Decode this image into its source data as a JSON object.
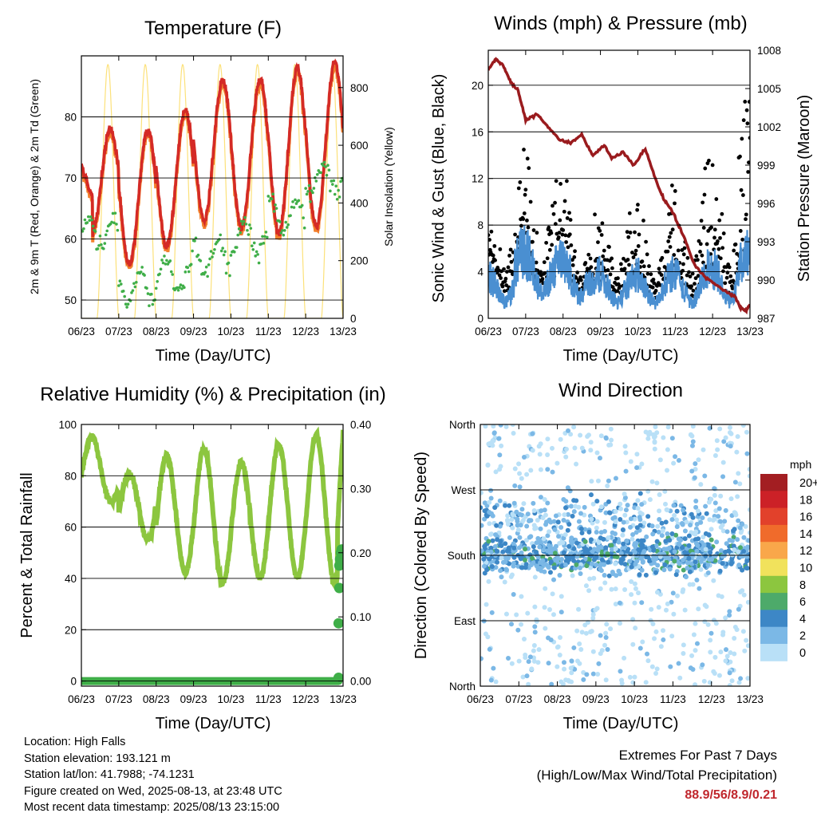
{
  "panels": {
    "temperature": {
      "title": "Temperature (F)",
      "xlabel": "Time (Day/UTC)",
      "ylabel_left": "2m & 9m T (Red, Orange) & 2m Td (Green)",
      "ylabel_right": "Solar Insolation (Yellow)"
    },
    "winds": {
      "title": "Winds (mph) & Pressure (mb)",
      "xlabel": "Time (Day/UTC)",
      "ylabel_left": "Sonic Wind & Gust (Blue, Black)",
      "ylabel_right": "Station Pressure (Maroon)"
    },
    "humidity": {
      "title": "Relative Humidity (%) & Precipitation (in)",
      "xlabel": "Time (Day/UTC)",
      "ylabel_left": "Percent & Total Rainfall"
    },
    "wind_direction": {
      "title": "Wind Direction",
      "xlabel": "Time (Day/UTC)",
      "ylabel_left": "Direction (Colored By Speed)"
    }
  },
  "colors": {
    "temp2m": "#d42a26",
    "temp9m": "#f27f2c",
    "dewpoint": "#3fae48",
    "solar": "#fce17a",
    "wind": "#4a8fd1",
    "gust": "#000000",
    "pressure": "#9a1b1e",
    "rh": "#8cc63f",
    "precip": "#3fae48",
    "extremes": "#c0272d"
  },
  "station": {
    "location": "Location: High Falls",
    "elevation": "Station elevation: 193.121 m",
    "latlon": "Station lat/lon: 41.7988; -74.1231",
    "created": "Figure created on Wed, 2025-08-13, at 23:48 UTC",
    "latest": "Most recent data timestamp: 2025/08/13 23:15:00"
  },
  "extremes": {
    "line1": "Extremes For Past 7 Days",
    "line2": "(High/Low/Max Wind/Total Precipitation)",
    "values": "88.9/56/8.9/0.21"
  },
  "chart_data": [
    {
      "id": "temperature",
      "type": "line",
      "title": "Temperature (F)",
      "xlabel": "Time (Day/UTC)",
      "ylabel": "2m & 9m T (Red, Orange) & 2m Td (Green)",
      "y2label": "Solar Insolation (Yellow)",
      "x_ticks": [
        "06/23",
        "07/23",
        "08/23",
        "09/23",
        "10/23",
        "11/23",
        "12/23",
        "13/23"
      ],
      "xlim": [
        0,
        7
      ],
      "ylim": [
        47,
        90
      ],
      "y_ticks": [
        50,
        60,
        70,
        80
      ],
      "y2lim": [
        0,
        910
      ],
      "y2_ticks": [
        0,
        200,
        400,
        600,
        800
      ],
      "grid": "horizontal",
      "daily_2m_temp": {
        "max": [
          78,
          78,
          81,
          86,
          86,
          88,
          88.9
        ],
        "min": [
          61,
          56,
          59,
          63,
          62,
          61,
          62
        ],
        "start": 72,
        "end": 73
      },
      "daily_dewpoint_typical": [
        61,
        52,
        54,
        57,
        60,
        64,
        70
      ],
      "solar_daily_peak": [
        880,
        880,
        880,
        880,
        880,
        880,
        880
      ],
      "series": [
        {
          "name": "2m T",
          "color": "#d42a26"
        },
        {
          "name": "9m T",
          "color": "#f27f2c"
        },
        {
          "name": "2m Td",
          "color": "#3fae48"
        },
        {
          "name": "Solar Insolation",
          "color": "#fce17a"
        }
      ]
    },
    {
      "id": "winds",
      "type": "scatter",
      "title": "Winds (mph) & Pressure (mb)",
      "xlabel": "Time (Day/UTC)",
      "ylabel": "Sonic Wind & Gust (Blue, Black)",
      "y2label": "Station Pressure (Maroon)",
      "x_ticks": [
        "06/23",
        "07/23",
        "08/23",
        "09/23",
        "10/23",
        "11/23",
        "12/23",
        "13/23"
      ],
      "xlim": [
        0,
        7
      ],
      "ylim": [
        0,
        23
      ],
      "y_ticks": [
        0,
        4,
        8,
        12,
        16,
        20
      ],
      "y2lim": [
        987,
        1008
      ],
      "y2_ticks": [
        987,
        990,
        993,
        996,
        999,
        1002,
        1005,
        1008
      ],
      "grid": "horizontal",
      "pressure": {
        "x": [
          0,
          0.2,
          0.4,
          0.6,
          0.8,
          1.0,
          1.3,
          1.6,
          1.9,
          2.2,
          2.5,
          2.8,
          3.1,
          3.3,
          3.6,
          3.9,
          4.2,
          4.5,
          4.7,
          4.9,
          5.2,
          5.5,
          5.8,
          6.1,
          6.4,
          6.6,
          6.75,
          6.9,
          7.0
        ],
        "y": [
          1006.5,
          1007.3,
          1006.8,
          1005.5,
          1004.8,
          1002.5,
          1003.0,
          1002.0,
          1001.0,
          1000.7,
          1001.4,
          999.7,
          1000.6,
          999.5,
          1000.0,
          999.0,
          1000.3,
          997.7,
          996.3,
          995.5,
          993.6,
          991.3,
          990.2,
          989.6,
          989.0,
          988.7,
          987.8,
          987.6,
          988.1
        ]
      },
      "daily_gust_max": [
        12.5,
        16,
        14,
        11,
        11,
        12.5,
        15.5,
        21
      ],
      "daily_wind_max": [
        6,
        9,
        8,
        6,
        6,
        6,
        7,
        8.9
      ],
      "series": [
        {
          "name": "Sonic Wind",
          "color": "#4a8fd1"
        },
        {
          "name": "Gust",
          "color": "#000000"
        },
        {
          "name": "Station Pressure",
          "color": "#9a1b1e"
        }
      ]
    },
    {
      "id": "humidity",
      "type": "line",
      "title": "Relative Humidity (%) & Precipitation (in)",
      "xlabel": "Time (Day/UTC)",
      "ylabel": "Percent & Total Rainfall",
      "x_ticks": [
        "06/23",
        "07/23",
        "08/23",
        "09/23",
        "10/23",
        "11/23",
        "12/23",
        "13/23"
      ],
      "xlim": [
        0,
        7
      ],
      "ylim": [
        -2,
        100
      ],
      "y_ticks": [
        0,
        20,
        40,
        60,
        80,
        100
      ],
      "y2lim": [
        -0.008,
        0.4
      ],
      "y2_ticks": [
        "0.00",
        "0.10",
        "0.20",
        "0.30",
        "0.40"
      ],
      "grid": "horizontal",
      "daily_rh": {
        "max": [
          95,
          81,
          88,
          91,
          85,
          92,
          96,
          97
        ],
        "min": [
          70,
          55,
          42,
          38,
          40,
          40,
          38,
          55
        ]
      },
      "precip_points": {
        "x": [
          6.88,
          6.88,
          6.9,
          6.9,
          6.92,
          6.94,
          6.96,
          6.98
        ],
        "y": [
          0.005,
          0.09,
          0.145,
          0.18,
          0.19,
          0.2,
          0.205,
          0.205
        ]
      },
      "series": [
        {
          "name": "RH",
          "color": "#8cc63f"
        },
        {
          "name": "Precip",
          "color": "#3fae48"
        }
      ]
    },
    {
      "id": "wind_direction",
      "type": "scatter",
      "title": "Wind Direction",
      "xlabel": "Time (Day/UTC)",
      "ylabel": "Direction (Colored By Speed)",
      "x_ticks": [
        "06/23",
        "07/23",
        "08/23",
        "09/23",
        "10/23",
        "11/23",
        "12/23",
        "13/23"
      ],
      "xlim": [
        0,
        7
      ],
      "ylim": [
        0,
        360
      ],
      "y_ticks": [
        "North",
        "East",
        "South",
        "West",
        "North"
      ],
      "grid": "horizontal",
      "legend_placement": "right",
      "legend_unit": "mph",
      "legend_labels": [
        "20+",
        "18",
        "16",
        "14",
        "12",
        "10",
        "8",
        "6",
        "4",
        "2",
        "0"
      ],
      "legend_colors": [
        "#a31e22",
        "#cc2127",
        "#e2412b",
        "#f06b2b",
        "#f9a74a",
        "#f1e25c",
        "#8cc63f",
        "#4daa6a",
        "#3d87c6",
        "#7bb8e6",
        "#b9e0f7"
      ]
    }
  ]
}
